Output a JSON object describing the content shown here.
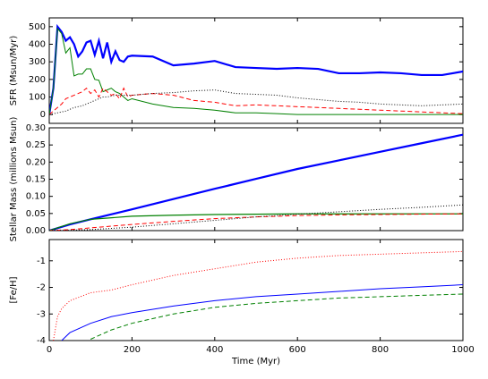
{
  "chart_data": [
    {
      "type": "line",
      "ylabel": "SFR (Msun/Myr)",
      "xlim": [
        0,
        1000
      ],
      "xticks": [
        0,
        200,
        400,
        600,
        800,
        1000
      ],
      "show_xticklabels": false,
      "ylim": [
        -50,
        550
      ],
      "yticks": [
        0,
        100,
        200,
        300,
        400,
        500
      ],
      "x": [
        0,
        10,
        20,
        30,
        40,
        50,
        60,
        70,
        80,
        90,
        100,
        110,
        120,
        130,
        140,
        150,
        160,
        170,
        180,
        190,
        200,
        250,
        300,
        350,
        400,
        450,
        500,
        550,
        600,
        650,
        700,
        750,
        800,
        850,
        900,
        950,
        1000
      ],
      "series": [
        {
          "color": "#0000ff",
          "linestyle": "solid",
          "linewidth": 2.2,
          "values": [
            0,
            150,
            500,
            470,
            420,
            440,
            400,
            330,
            360,
            410,
            420,
            340,
            420,
            320,
            410,
            300,
            360,
            310,
            300,
            330,
            335,
            330,
            280,
            290,
            305,
            270,
            265,
            260,
            265,
            260,
            235,
            235,
            240,
            235,
            225,
            225,
            245
          ]
        },
        {
          "color": "#008000",
          "linestyle": "solid",
          "linewidth": 1,
          "values": [
            0,
            150,
            490,
            460,
            350,
            380,
            220,
            230,
            230,
            260,
            260,
            200,
            195,
            130,
            140,
            150,
            130,
            120,
            100,
            80,
            90,
            60,
            40,
            35,
            25,
            10,
            10,
            5,
            0,
            0,
            0,
            0,
            0,
            0,
            0,
            0,
            0
          ]
        },
        {
          "color": "#ff0000",
          "linestyle": "dashed",
          "linewidth": 1,
          "values": [
            0,
            20,
            40,
            60,
            90,
            100,
            110,
            120,
            130,
            150,
            120,
            140,
            100,
            150,
            130,
            110,
            120,
            90,
            150,
            100,
            110,
            120,
            110,
            80,
            70,
            50,
            55,
            50,
            45,
            40,
            35,
            30,
            25,
            20,
            15,
            10,
            5
          ]
        },
        {
          "color": "#000000",
          "linestyle": "dotted",
          "linewidth": 1,
          "values": [
            0,
            5,
            10,
            15,
            20,
            30,
            40,
            45,
            50,
            60,
            70,
            80,
            90,
            100,
            100,
            105,
            110,
            110,
            110,
            110,
            110,
            120,
            125,
            135,
            140,
            120,
            115,
            110,
            95,
            85,
            75,
            70,
            60,
            55,
            50,
            55,
            60
          ]
        }
      ]
    },
    {
      "type": "line",
      "ylabel": "Stellar Mass (millions Msun)",
      "xlim": [
        0,
        1000
      ],
      "xticks": [
        0,
        200,
        400,
        600,
        800,
        1000
      ],
      "show_xticklabels": false,
      "ylim": [
        0,
        0.3
      ],
      "yticks": [
        {
          "value": 0,
          "label": "0.00"
        },
        {
          "value": 0.05,
          "label": "0.05"
        },
        {
          "value": 0.1,
          "label": "0.10"
        },
        {
          "value": 0.15,
          "label": "0.15"
        },
        {
          "value": 0.2,
          "label": "0.20"
        },
        {
          "value": 0.25,
          "label": "0.25"
        },
        {
          "value": 0.3,
          "label": "0.30"
        }
      ],
      "x": [
        0,
        50,
        100,
        200,
        300,
        400,
        500,
        600,
        700,
        800,
        900,
        1000
      ],
      "series": [
        {
          "color": "#0000ff",
          "linestyle": "solid",
          "linewidth": 2.2,
          "values": [
            0,
            0.018,
            0.033,
            0.062,
            0.092,
            0.122,
            0.151,
            0.18,
            0.205,
            0.23,
            0.255,
            0.28
          ]
        },
        {
          "color": "#008000",
          "linestyle": "solid",
          "linewidth": 1.2,
          "values": [
            0,
            0.02,
            0.033,
            0.042,
            0.045,
            0.047,
            0.048,
            0.049,
            0.049,
            0.049,
            0.049,
            0.049
          ]
        },
        {
          "color": "#ff0000",
          "linestyle": "dashed",
          "linewidth": 1,
          "values": [
            0,
            0.003,
            0.008,
            0.018,
            0.027,
            0.035,
            0.04,
            0.044,
            0.046,
            0.047,
            0.048,
            0.049
          ]
        },
        {
          "color": "#000000",
          "linestyle": "dotted",
          "linewidth": 1,
          "values": [
            0,
            0.001,
            0.003,
            0.01,
            0.02,
            0.03,
            0.04,
            0.048,
            0.055,
            0.062,
            0.068,
            0.075
          ]
        }
      ]
    },
    {
      "type": "line",
      "ylabel": "[Fe/H]",
      "xlabel": "Time (Myr)",
      "xlim": [
        0,
        1000
      ],
      "xticks": [
        0,
        200,
        400,
        600,
        800,
        1000
      ],
      "show_xticklabels": true,
      "ylim": [
        -4,
        -0.2
      ],
      "yticks": [
        -4,
        -3,
        -2,
        -1
      ],
      "x": [
        10,
        20,
        30,
        50,
        100,
        150,
        200,
        300,
        400,
        500,
        600,
        700,
        800,
        900,
        1000
      ],
      "series": [
        {
          "color": "#ff0000",
          "linestyle": "dotted",
          "linewidth": 1,
          "values": [
            -4,
            -3.1,
            -2.8,
            -2.5,
            -2.2,
            -2.1,
            -1.9,
            -1.55,
            -1.3,
            -1.05,
            -0.9,
            -0.8,
            -0.75,
            -0.7,
            -0.65
          ]
        },
        {
          "color": "#0000ff",
          "linestyle": "solid",
          "linewidth": 1,
          "values": [
            null,
            null,
            -4,
            -3.7,
            -3.35,
            -3.1,
            -2.95,
            -2.7,
            -2.5,
            -2.35,
            -2.25,
            -2.15,
            -2.05,
            -1.98,
            -1.9
          ]
        },
        {
          "color": "#008000",
          "linestyle": "dashed",
          "linewidth": 1,
          "values": [
            null,
            null,
            null,
            null,
            -3.95,
            -3.6,
            -3.35,
            -3,
            -2.75,
            -2.6,
            -2.5,
            -2.4,
            -2.35,
            -2.3,
            -2.25
          ]
        }
      ]
    }
  ]
}
